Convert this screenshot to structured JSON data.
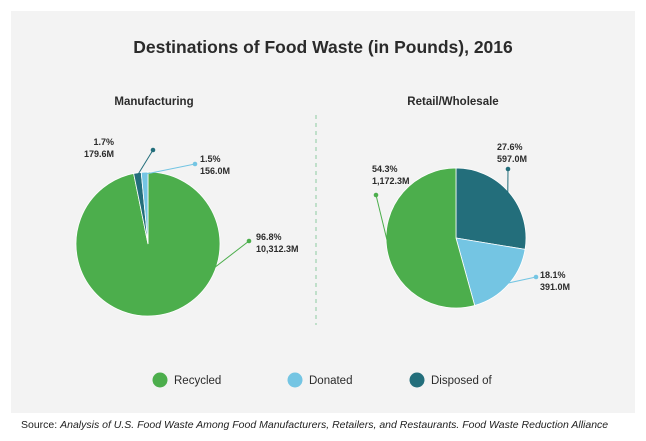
{
  "title": "Destinations of Food Waste (in Pounds), 2016",
  "colors": {
    "recycled": "#4cae4c",
    "donated": "#74c5e3",
    "disposed": "#236e7b",
    "text": "#2b2b2b",
    "divider": "#9fd2ae"
  },
  "legend": [
    {
      "label": "Recycled",
      "color": "#4cae4c"
    },
    {
      "label": "Donated",
      "color": "#74c5e3"
    },
    {
      "label": "Disposed of",
      "color": "#236e7b"
    }
  ],
  "chart_data": [
    {
      "type": "pie",
      "title": "Manufacturing",
      "slices": [
        {
          "category": "Recycled",
          "percent": 96.8,
          "value_label": "10,312.3M",
          "percent_label": "96.8%",
          "color": "#4cae4c"
        },
        {
          "category": "Disposed of",
          "percent": 1.7,
          "value_label": "179.6M",
          "percent_label": "1.7%",
          "color": "#236e7b"
        },
        {
          "category": "Donated",
          "percent": 1.5,
          "value_label": "156.0M",
          "percent_label": "1.5%",
          "color": "#74c5e3"
        }
      ]
    },
    {
      "type": "pie",
      "title": "Retail/Wholesale",
      "slices": [
        {
          "category": "Disposed of",
          "percent": 27.6,
          "value_label": "597.0M",
          "percent_label": "27.6%",
          "color": "#236e7b"
        },
        {
          "category": "Donated",
          "percent": 18.1,
          "value_label": "391.0M",
          "percent_label": "18.1%",
          "color": "#74c5e3"
        },
        {
          "category": "Recycled",
          "percent": 54.3,
          "value_label": "1,172.3M",
          "percent_label": "54.3%",
          "color": "#4cae4c"
        }
      ]
    }
  ],
  "source": {
    "prefix": "Source: ",
    "citation": "Analysis of U.S. Food Waste Among Food Manufacturers, Retailers, and Restaurants. Food Waste Reduction Alliance"
  }
}
